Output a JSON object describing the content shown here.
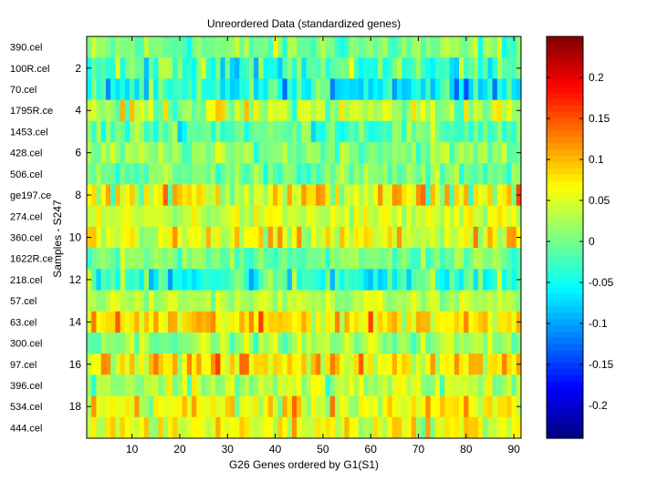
{
  "chart_data": {
    "type": "heatmap",
    "title": "Unreordered Data (standardized genes)",
    "xlabel": "G26 Genes ordered by G1(S1)",
    "ylabel": "Samples - S247",
    "n_cols": 91,
    "n_rows": 19,
    "xlim": [
      0.5,
      91.5
    ],
    "ylim": [
      0.5,
      19.5
    ],
    "x_ticks": [
      10,
      20,
      30,
      40,
      50,
      60,
      70,
      80,
      90
    ],
    "y_ticks": [
      2,
      4,
      6,
      8,
      10,
      12,
      14,
      16,
      18
    ],
    "row_labels": [
      "390.cel",
      "100R.cel",
      "70.cel",
      "1795R.ce",
      "1453.cel",
      "428.cel",
      "506.cel",
      "ge197.ce",
      "274.cel",
      "360.cel",
      "1622R.ce",
      "218.cel",
      "57.cel",
      "63.cel",
      "300.cel",
      "97.cel",
      "396.cel",
      "534.cel",
      "444.cel"
    ],
    "colormap": "jet",
    "colorbar": {
      "clim": [
        -0.24,
        0.25
      ],
      "ticks": [
        -0.2,
        -0.15,
        -0.1,
        -0.05,
        0,
        0.05,
        0.1,
        0.15,
        0.2
      ],
      "tick_labels": [
        "-0.2",
        "-0.15",
        "-0.1",
        "-0.05",
        "0",
        "0.05",
        "0.1",
        "0.15",
        "0.2"
      ]
    },
    "row_profiles": [
      {
        "row": 1,
        "mean": 0.0,
        "spread": 0.05
      },
      {
        "row": 2,
        "mean": -0.02,
        "spread": 0.06
      },
      {
        "row": 3,
        "mean": -0.05,
        "spread": 0.06
      },
      {
        "row": 4,
        "mean": 0.03,
        "spread": 0.06
      },
      {
        "row": 5,
        "mean": -0.01,
        "spread": 0.05
      },
      {
        "row": 6,
        "mean": 0.01,
        "spread": 0.04
      },
      {
        "row": 7,
        "mean": 0.0,
        "spread": 0.04
      },
      {
        "row": 8,
        "mean": 0.06,
        "spread": 0.07
      },
      {
        "row": 9,
        "mean": 0.04,
        "spread": 0.04
      },
      {
        "row": 10,
        "mean": 0.05,
        "spread": 0.06
      },
      {
        "row": 11,
        "mean": 0.0,
        "spread": 0.04
      },
      {
        "row": 12,
        "mean": -0.03,
        "spread": 0.07
      },
      {
        "row": 13,
        "mean": 0.03,
        "spread": 0.03
      },
      {
        "row": 14,
        "mean": 0.08,
        "spread": 0.06
      },
      {
        "row": 15,
        "mean": 0.02,
        "spread": 0.04
      },
      {
        "row": 16,
        "mean": 0.08,
        "spread": 0.06
      },
      {
        "row": 17,
        "mean": 0.03,
        "spread": 0.05
      },
      {
        "row": 18,
        "mean": 0.06,
        "spread": 0.06
      },
      {
        "row": 19,
        "mean": 0.06,
        "spread": 0.05
      }
    ]
  }
}
